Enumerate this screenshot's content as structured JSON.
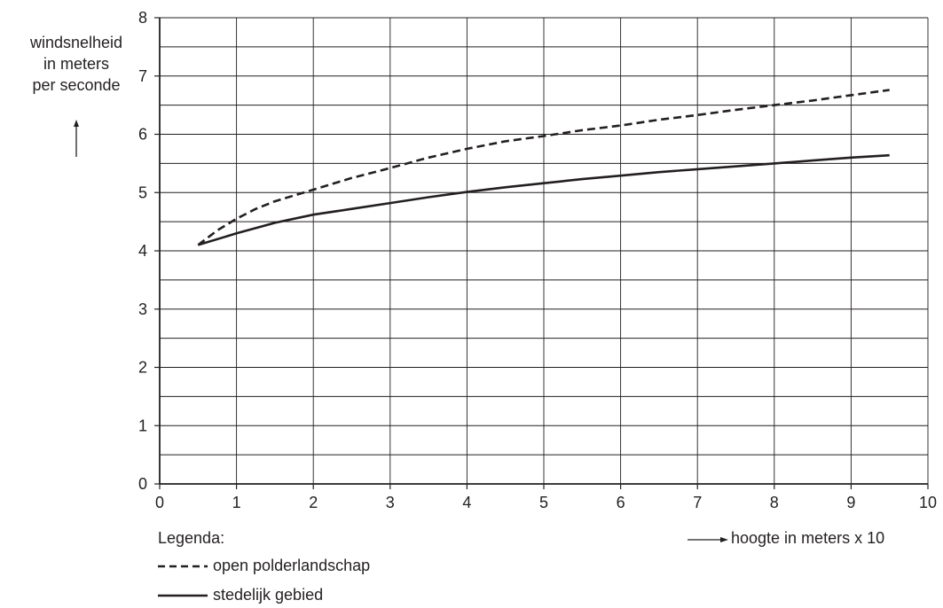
{
  "chart_data": {
    "type": "line",
    "xlabel": "hoogte in meters x 10",
    "ylabel": [
      "windsnelheid",
      "in meters",
      "per seconde"
    ],
    "xlim": [
      0,
      10
    ],
    "ylim": [
      0,
      8
    ],
    "xticks": [
      "0",
      "1",
      "2",
      "3",
      "4",
      "5",
      "6",
      "7",
      "8",
      "9",
      "10"
    ],
    "yticks": [
      "0",
      "1",
      "2",
      "3",
      "4",
      "5",
      "6",
      "7",
      "8"
    ],
    "grid": true,
    "legend_title": "Legenda:",
    "series": [
      {
        "name": "open polderlandschap",
        "style": "dashed",
        "color": "#231f20",
        "x": [
          0.5,
          0.75,
          1.0,
          1.25,
          1.5,
          2.0,
          2.5,
          3.0,
          3.5,
          4.0,
          4.5,
          5.0,
          5.5,
          6.0,
          6.5,
          7.0,
          7.5,
          8.0,
          8.5,
          9.0,
          9.5
        ],
        "y": [
          4.1,
          4.35,
          4.55,
          4.72,
          4.85,
          5.05,
          5.25,
          5.42,
          5.6,
          5.75,
          5.88,
          5.97,
          6.07,
          6.15,
          6.25,
          6.33,
          6.42,
          6.5,
          6.58,
          6.67,
          6.76
        ]
      },
      {
        "name": "stedelijk gebied",
        "style": "solid",
        "color": "#231f20",
        "x": [
          0.5,
          1.0,
          1.5,
          2.0,
          2.5,
          3.0,
          3.5,
          4.0,
          4.5,
          5.0,
          5.5,
          6.0,
          6.5,
          7.0,
          7.5,
          8.0,
          8.5,
          9.0,
          9.5
        ],
        "y": [
          4.1,
          4.3,
          4.48,
          4.62,
          4.72,
          4.82,
          4.92,
          5.01,
          5.09,
          5.16,
          5.23,
          5.29,
          5.35,
          5.4,
          5.45,
          5.5,
          5.55,
          5.6,
          5.64
        ]
      }
    ]
  }
}
